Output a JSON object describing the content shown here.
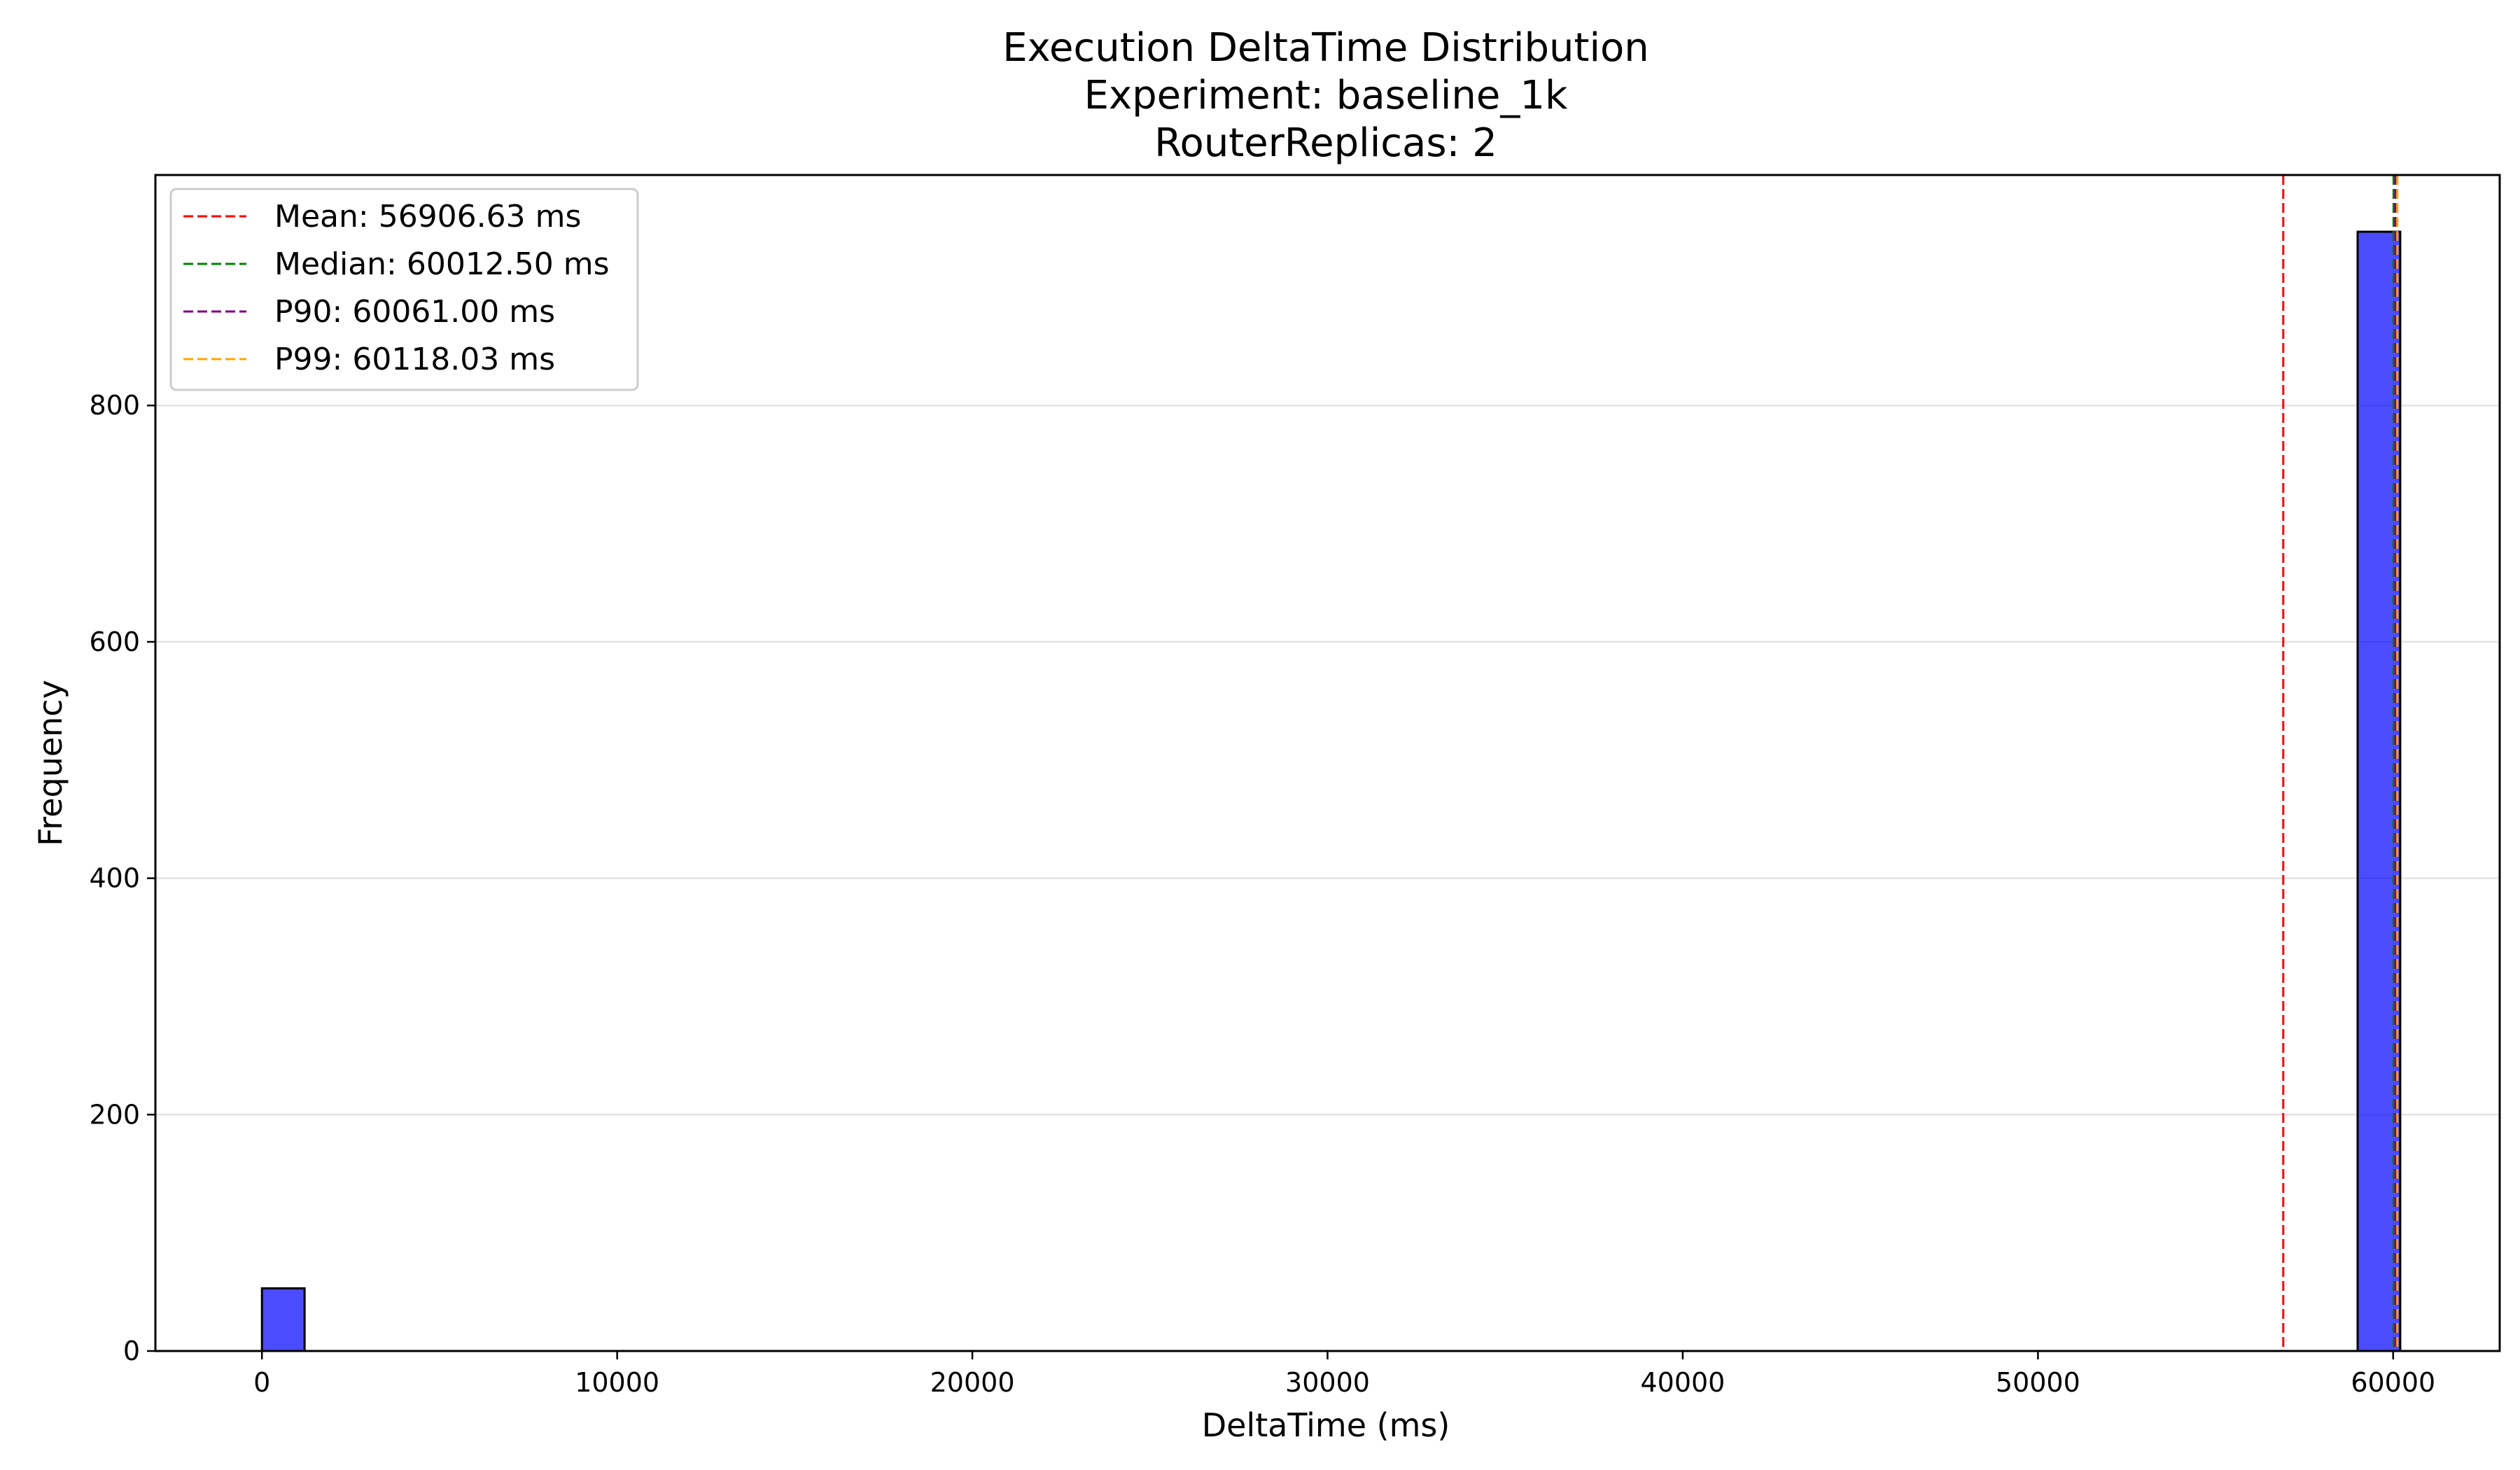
{
  "chart_data": {
    "type": "bar",
    "subtype": "histogram",
    "title": [
      "Execution DeltaTime Distribution",
      "Experiment: baseline_1k",
      "RouterReplicas: 2"
    ],
    "xlabel": "DeltaTime (ms)",
    "ylabel": "Frequency",
    "xlim": [
      -3000,
      63000
    ],
    "ylim": [
      0,
      995
    ],
    "xticks": [
      0,
      10000,
      20000,
      30000,
      40000,
      50000,
      60000
    ],
    "yticks": [
      0,
      200,
      400,
      600,
      800
    ],
    "grid": {
      "y": true,
      "x": false
    },
    "bars": [
      {
        "x0": 0,
        "x1": 1200,
        "count": 53
      },
      {
        "x0": 59000,
        "x1": 60200,
        "count": 947
      }
    ],
    "bar_color": "#0000ff",
    "bar_alpha": 0.7,
    "bar_edge_color": "#000000",
    "reference_lines": [
      {
        "label": "Mean: 56906.63 ms",
        "x": 56906.63,
        "color": "#ff0000"
      },
      {
        "label": "Median: 60012.50 ms",
        "x": 60012.5,
        "color": "#008000"
      },
      {
        "label": "P90: 60061.00 ms",
        "x": 60061.0,
        "color": "#800080"
      },
      {
        "label": "P99: 60118.03 ms",
        "x": 60118.03,
        "color": "#ffa500"
      }
    ],
    "legend_position": "top-left"
  }
}
